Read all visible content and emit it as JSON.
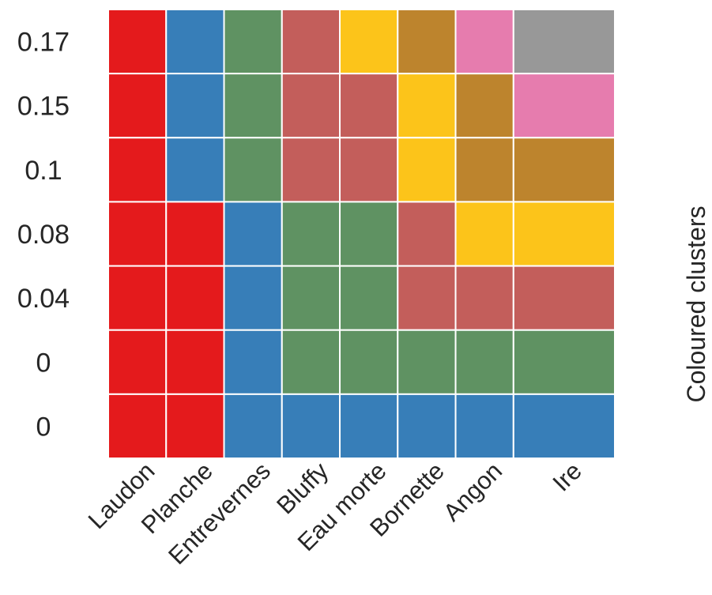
{
  "chart_data": {
    "type": "heatmap",
    "title": "",
    "xlabel": "",
    "ylabel": "",
    "colorbar_label": "Coloured clusters",
    "x_categories": [
      "Laudon",
      "Planche",
      "Entrevernes",
      "Bluffy",
      "Eau morte",
      "Bornette",
      "Angon",
      "Ire"
    ],
    "y_categories": [
      "0.17",
      "0.15",
      "0.1",
      "0.08",
      "0.04",
      "0",
      "0"
    ],
    "palette": [
      "#e41a1c",
      "#377eb8",
      "#5f9262",
      "#c35e5b",
      "#fcc41a",
      "#bd842d",
      "#e67cae",
      "#989898"
    ],
    "cluster_matrix": [
      [
        0,
        1,
        2,
        3,
        4,
        5,
        6,
        7
      ],
      [
        0,
        1,
        2,
        3,
        3,
        4,
        5,
        6
      ],
      [
        0,
        1,
        2,
        3,
        3,
        4,
        5,
        5
      ],
      [
        0,
        0,
        1,
        2,
        2,
        3,
        4,
        4
      ],
      [
        0,
        0,
        1,
        2,
        2,
        3,
        3,
        3
      ],
      [
        0,
        0,
        1,
        2,
        2,
        2,
        2,
        2
      ],
      [
        0,
        0,
        1,
        1,
        1,
        1,
        1,
        1
      ]
    ],
    "grid": false,
    "legend": "none"
  }
}
